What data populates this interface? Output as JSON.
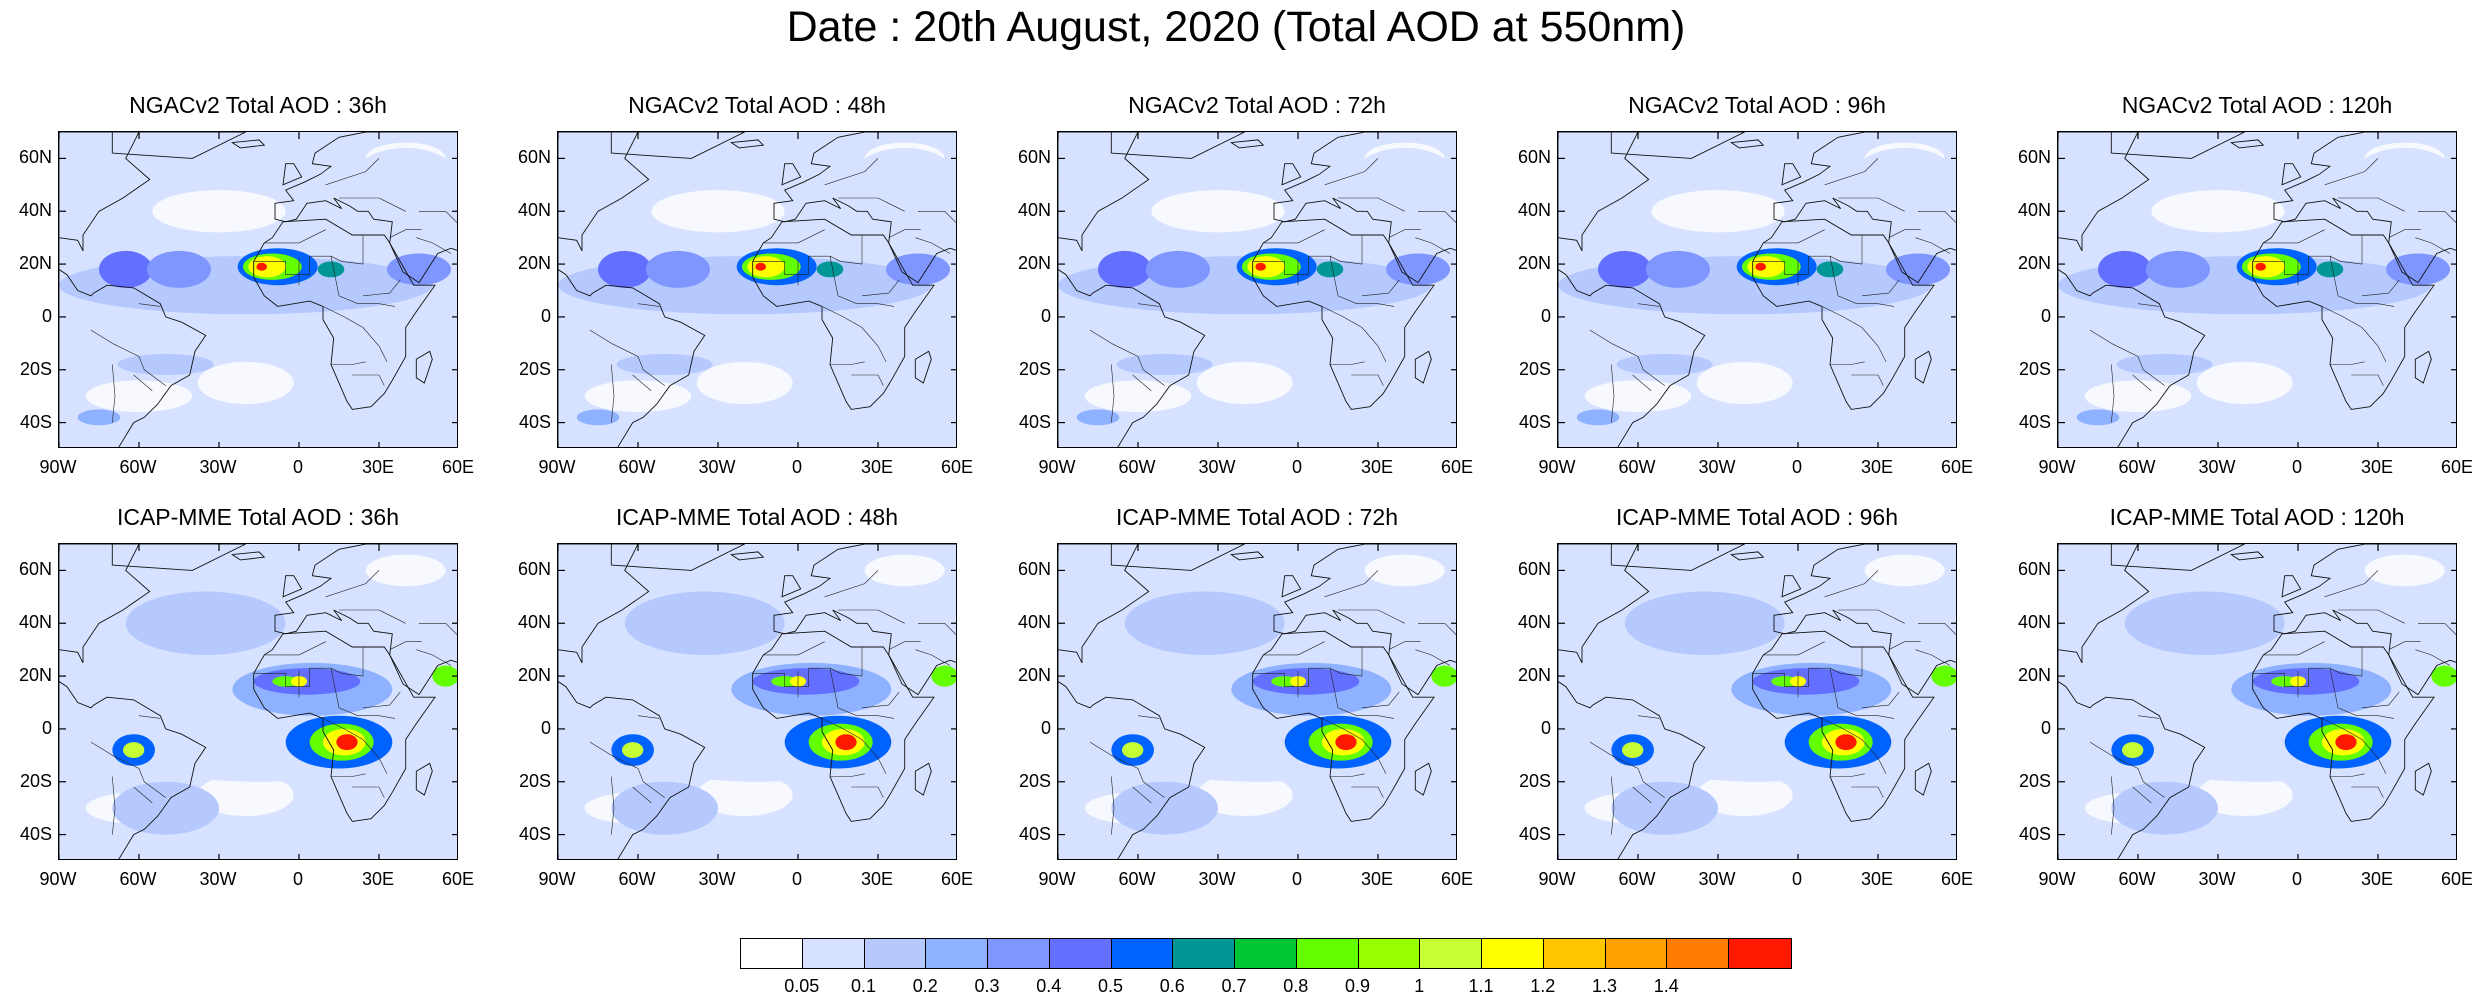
{
  "title": "Date : 20th August, 2020 (Total AOD at 550nm)",
  "rows": [
    {
      "model": "NGACv2",
      "panels": [
        {
          "title": "NGACv2 Total AOD : 36h",
          "lead": "36h"
        },
        {
          "title": "NGACv2 Total AOD : 48h",
          "lead": "48h"
        },
        {
          "title": "NGACv2 Total AOD : 72h",
          "lead": "72h"
        },
        {
          "title": "NGACv2 Total AOD : 96h",
          "lead": "96h"
        },
        {
          "title": "NGACv2 Total AOD : 120h",
          "lead": "120h"
        }
      ]
    },
    {
      "model": "ICAP-MME",
      "panels": [
        {
          "title": "ICAP-MME Total AOD : 36h",
          "lead": "36h"
        },
        {
          "title": "ICAP-MME Total AOD : 48h",
          "lead": "48h"
        },
        {
          "title": "ICAP-MME Total AOD : 72h",
          "lead": "72h"
        },
        {
          "title": "ICAP-MME Total AOD : 96h",
          "lead": "96h"
        },
        {
          "title": "ICAP-MME Total AOD : 120h",
          "lead": "120h"
        }
      ]
    }
  ],
  "map_extent": {
    "lon_min": -90,
    "lon_max": 60,
    "lat_min": -50,
    "lat_max": 70
  },
  "lat_ticks": [
    {
      "value": 60,
      "label": "60N"
    },
    {
      "value": 40,
      "label": "40N"
    },
    {
      "value": 20,
      "label": "20N"
    },
    {
      "value": 0,
      "label": "0"
    },
    {
      "value": -20,
      "label": "20S"
    },
    {
      "value": -40,
      "label": "40S"
    }
  ],
  "lon_ticks": [
    {
      "value": -90,
      "label": "90W"
    },
    {
      "value": -60,
      "label": "60W"
    },
    {
      "value": -30,
      "label": "30W"
    },
    {
      "value": 0,
      "label": "0"
    },
    {
      "value": 30,
      "label": "30E"
    },
    {
      "value": 60,
      "label": "60E"
    }
  ],
  "colorbar": {
    "colors": [
      "#ffffff",
      "#d6e2ff",
      "#b5c9ff",
      "#8eb2ff",
      "#7f96ff",
      "#6370ff",
      "#0063ff",
      "#009696",
      "#00c633",
      "#63ff00",
      "#96ff00",
      "#c6ff33",
      "#ffff00",
      "#ffc600",
      "#ffa000",
      "#ff7c00",
      "#ff1900"
    ],
    "labels": [
      "0.05",
      "0.1",
      "0.2",
      "0.3",
      "0.4",
      "0.5",
      "0.6",
      "0.7",
      "0.8",
      "0.9",
      "1",
      "1.1",
      "1.2",
      "1.3",
      "1.4"
    ]
  },
  "features": {
    "ngac": [
      {
        "lon": -20,
        "lat": 12,
        "rx": 70,
        "ry": 11,
        "level": 2
      },
      {
        "lon": -65,
        "lat": 18,
        "rx": 10,
        "ry": 7,
        "level": 5
      },
      {
        "lon": -45,
        "lat": 18,
        "rx": 12,
        "ry": 7,
        "level": 4
      },
      {
        "lon": -8,
        "lat": 19,
        "rx": 15,
        "ry": 7,
        "level": 6
      },
      {
        "lon": -10,
        "lat": 19,
        "rx": 11,
        "ry": 5,
        "level": 9
      },
      {
        "lon": -12,
        "lat": 19,
        "rx": 7,
        "ry": 4,
        "level": 12
      },
      {
        "lon": -14,
        "lat": 19,
        "rx": 2,
        "ry": 1.5,
        "level": 16
      },
      {
        "lon": 12,
        "lat": 18,
        "rx": 5,
        "ry": 3,
        "level": 7
      },
      {
        "lon": 45,
        "lat": 18,
        "rx": 12,
        "ry": 6,
        "level": 4
      },
      {
        "lon": -50,
        "lat": -18,
        "rx": 18,
        "ry": 4,
        "level": 2
      },
      {
        "lon": -75,
        "lat": -38,
        "rx": 8,
        "ry": 3,
        "level": 3
      },
      {
        "lon": 40,
        "lat": 52,
        "rx": 20,
        "ry": 12,
        "level": 1
      }
    ],
    "icap": [
      {
        "lon": -15,
        "lat": 10,
        "rx": 80,
        "ry": 30,
        "level": 1
      },
      {
        "lon": 5,
        "lat": 15,
        "rx": 30,
        "ry": 10,
        "level": 3
      },
      {
        "lon": 3,
        "lat": 18,
        "rx": 20,
        "ry": 5,
        "level": 5
      },
      {
        "lon": -5,
        "lat": 18,
        "rx": 5,
        "ry": 2,
        "level": 9
      },
      {
        "lon": 0,
        "lat": 18,
        "rx": 3,
        "ry": 2,
        "level": 12
      },
      {
        "lon": 15,
        "lat": -5,
        "rx": 20,
        "ry": 10,
        "level": 6
      },
      {
        "lon": 16,
        "lat": -5,
        "rx": 12,
        "ry": 7,
        "level": 9
      },
      {
        "lon": 17,
        "lat": -5,
        "rx": 8,
        "ry": 5,
        "level": 12
      },
      {
        "lon": 18,
        "lat": -5,
        "rx": 4,
        "ry": 3,
        "level": 16
      },
      {
        "lon": -62,
        "lat": -8,
        "rx": 8,
        "ry": 6,
        "level": 6
      },
      {
        "lon": -62,
        "lat": -8,
        "rx": 4,
        "ry": 3,
        "level": 11
      },
      {
        "lon": 55,
        "lat": 20,
        "rx": 5,
        "ry": 4,
        "level": 9
      },
      {
        "lon": -35,
        "lat": 40,
        "rx": 30,
        "ry": 12,
        "level": 2
      },
      {
        "lon": -50,
        "lat": -30,
        "rx": 20,
        "ry": 10,
        "level": 2
      }
    ]
  }
}
